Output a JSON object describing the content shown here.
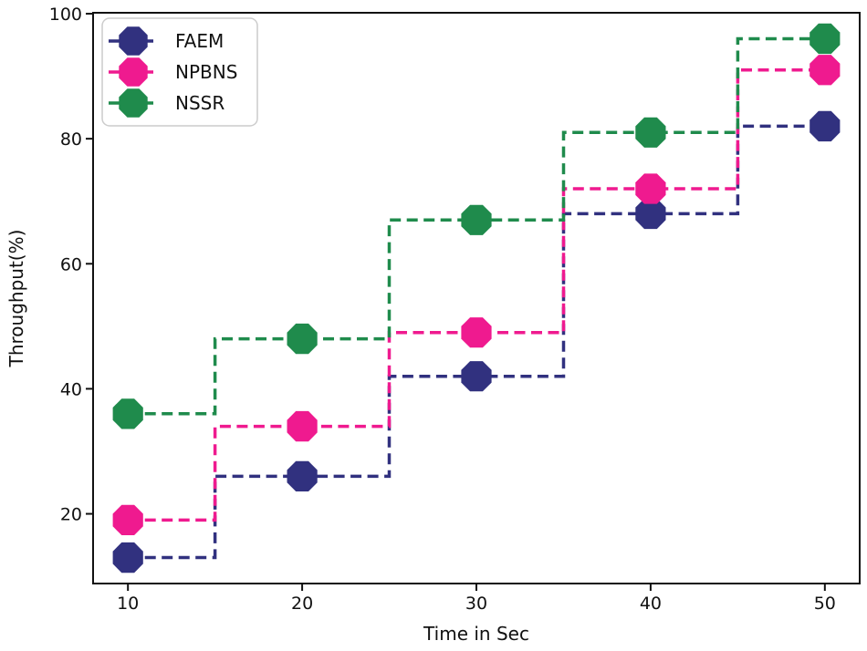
{
  "figure": {
    "background": "#ffffff",
    "axes_color": "#111111"
  },
  "chart_data": {
    "type": "line",
    "subtype": "step-mid-dashed-with-octagon-markers",
    "title": "",
    "xlabel": "Time in Sec",
    "ylabel": "Throughput(%)",
    "x": [
      10,
      20,
      30,
      40,
      50
    ],
    "series": [
      {
        "name": "FAEM",
        "color": "#31317F",
        "values": [
          13,
          26,
          42,
          68,
          82
        ]
      },
      {
        "name": "NPBNS",
        "color": "#EF1A8F",
        "values": [
          19,
          34,
          49,
          72,
          91
        ]
      },
      {
        "name": "NSSR",
        "color": "#1F8B4C",
        "values": [
          36,
          48,
          67,
          81,
          96
        ]
      }
    ],
    "x_ticks": [
      10,
      20,
      30,
      40,
      50
    ],
    "y_ticks": [
      20,
      40,
      60,
      80,
      100
    ],
    "xlim": [
      8,
      52
    ],
    "ylim": [
      8.85,
      100.15
    ],
    "grid": false,
    "legend_position": "upper-left",
    "legend_entries": [
      "FAEM",
      "NPBNS",
      "NSSR"
    ]
  }
}
